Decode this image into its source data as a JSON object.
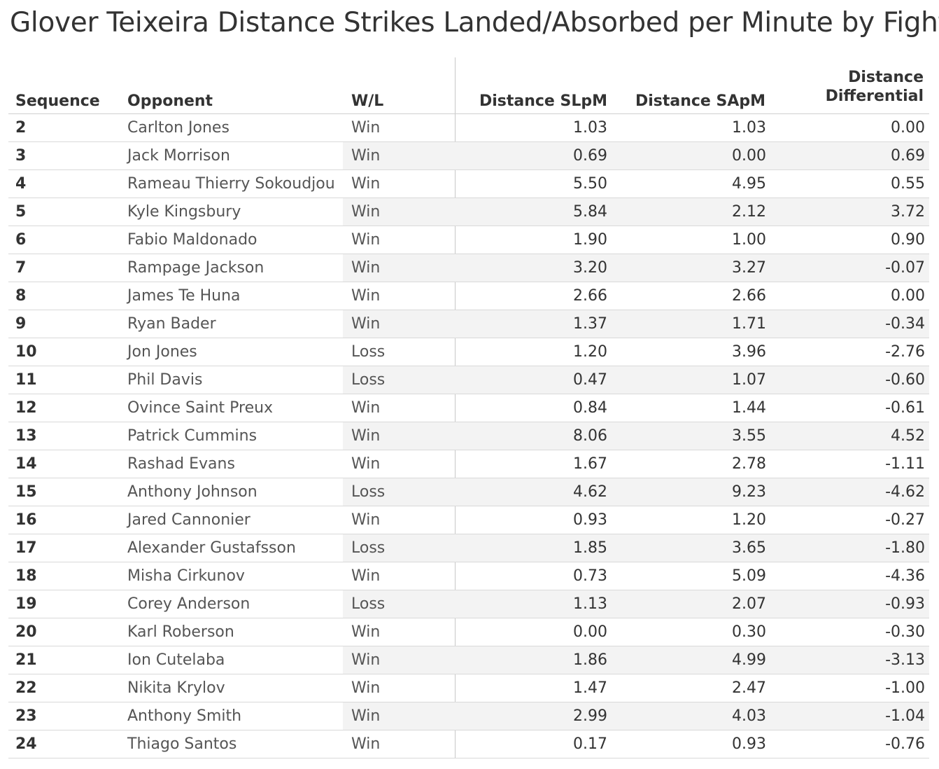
{
  "chart_data": {
    "type": "table",
    "title": "Glover Teixeira Distance Strikes Landed/Absorbed per Minute by Fight",
    "columns": {
      "sequence": "Sequence",
      "opponent": "Opponent",
      "wl": "W/L",
      "slpm": "Distance SLpM",
      "sapm": "Distance SApM",
      "diff_line1": "Distance",
      "diff_line2": "Differential"
    },
    "rows": [
      {
        "seq": "2",
        "opponent": "Carlton Jones",
        "wl": "Win",
        "slpm": "1.03",
        "sapm": "1.03",
        "diff": "0.00"
      },
      {
        "seq": "3",
        "opponent": "Jack Morrison",
        "wl": "Win",
        "slpm": "0.69",
        "sapm": "0.00",
        "diff": "0.69"
      },
      {
        "seq": "4",
        "opponent": "Rameau Thierry Sokoudjou",
        "wl": "Win",
        "slpm": "5.50",
        "sapm": "4.95",
        "diff": "0.55"
      },
      {
        "seq": "5",
        "opponent": "Kyle Kingsbury",
        "wl": "Win",
        "slpm": "5.84",
        "sapm": "2.12",
        "diff": "3.72"
      },
      {
        "seq": "6",
        "opponent": "Fabio Maldonado",
        "wl": "Win",
        "slpm": "1.90",
        "sapm": "1.00",
        "diff": "0.90"
      },
      {
        "seq": "7",
        "opponent": "Rampage Jackson",
        "wl": "Win",
        "slpm": "3.20",
        "sapm": "3.27",
        "diff": "-0.07"
      },
      {
        "seq": "8",
        "opponent": "James Te Huna",
        "wl": "Win",
        "slpm": "2.66",
        "sapm": "2.66",
        "diff": "0.00"
      },
      {
        "seq": "9",
        "opponent": "Ryan Bader",
        "wl": "Win",
        "slpm": "1.37",
        "sapm": "1.71",
        "diff": "-0.34"
      },
      {
        "seq": "10",
        "opponent": "Jon Jones",
        "wl": "Loss",
        "slpm": "1.20",
        "sapm": "3.96",
        "diff": "-2.76"
      },
      {
        "seq": "11",
        "opponent": "Phil Davis",
        "wl": "Loss",
        "slpm": "0.47",
        "sapm": "1.07",
        "diff": "-0.60"
      },
      {
        "seq": "12",
        "opponent": "Ovince Saint Preux",
        "wl": "Win",
        "slpm": "0.84",
        "sapm": "1.44",
        "diff": "-0.61"
      },
      {
        "seq": "13",
        "opponent": "Patrick Cummins",
        "wl": "Win",
        "slpm": "8.06",
        "sapm": "3.55",
        "diff": "4.52"
      },
      {
        "seq": "14",
        "opponent": "Rashad Evans",
        "wl": "Win",
        "slpm": "1.67",
        "sapm": "2.78",
        "diff": "-1.11"
      },
      {
        "seq": "15",
        "opponent": "Anthony Johnson",
        "wl": "Loss",
        "slpm": "4.62",
        "sapm": "9.23",
        "diff": "-4.62"
      },
      {
        "seq": "16",
        "opponent": "Jared Cannonier",
        "wl": "Win",
        "slpm": "0.93",
        "sapm": "1.20",
        "diff": "-0.27"
      },
      {
        "seq": "17",
        "opponent": "Alexander Gustafsson",
        "wl": "Loss",
        "slpm": "1.85",
        "sapm": "3.65",
        "diff": "-1.80"
      },
      {
        "seq": "18",
        "opponent": "Misha Cirkunov",
        "wl": "Win",
        "slpm": "0.73",
        "sapm": "5.09",
        "diff": "-4.36"
      },
      {
        "seq": "19",
        "opponent": "Corey Anderson",
        "wl": "Loss",
        "slpm": "1.13",
        "sapm": "2.07",
        "diff": "-0.93"
      },
      {
        "seq": "20",
        "opponent": "Karl Roberson",
        "wl": "Win",
        "slpm": "0.00",
        "sapm": "0.30",
        "diff": "-0.30"
      },
      {
        "seq": "21",
        "opponent": "Ion Cutelaba",
        "wl": "Win",
        "slpm": "1.86",
        "sapm": "4.99",
        "diff": "-3.13"
      },
      {
        "seq": "22",
        "opponent": "Nikita Krylov",
        "wl": "Win",
        "slpm": "1.47",
        "sapm": "2.47",
        "diff": "-1.00"
      },
      {
        "seq": "23",
        "opponent": "Anthony Smith",
        "wl": "Win",
        "slpm": "2.99",
        "sapm": "4.03",
        "diff": "-1.04"
      },
      {
        "seq": "24",
        "opponent": "Thiago Santos",
        "wl": "Win",
        "slpm": "0.17",
        "sapm": "0.93",
        "diff": "-0.76"
      }
    ]
  }
}
